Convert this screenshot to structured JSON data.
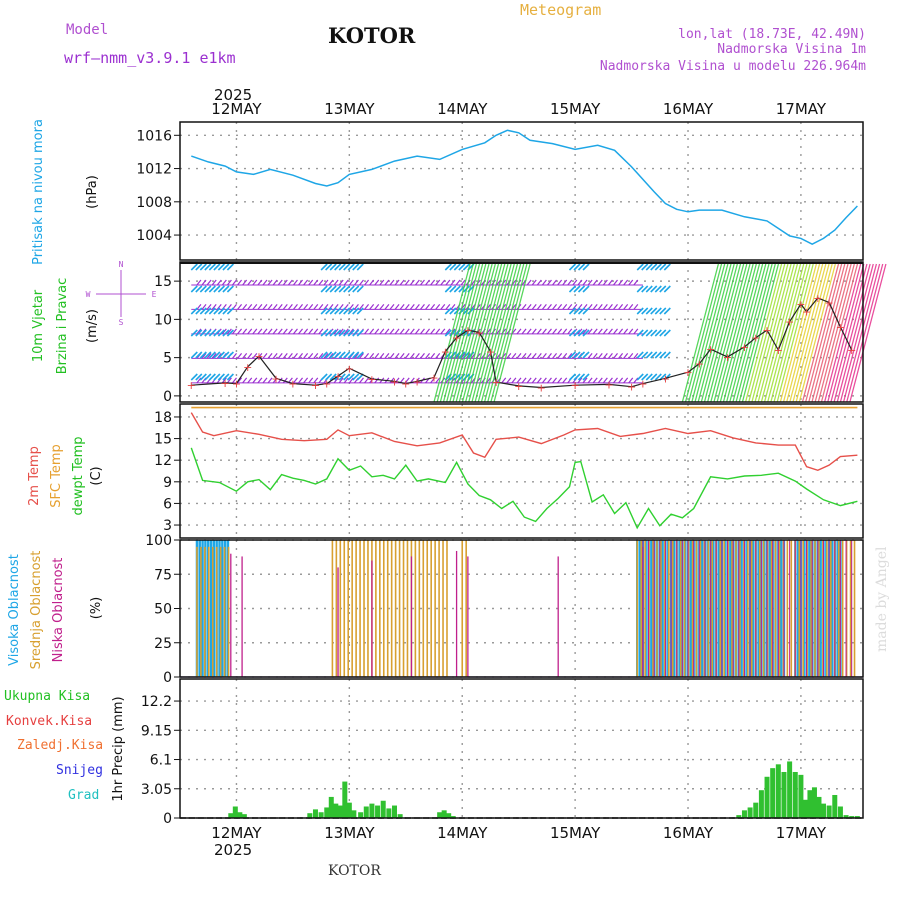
{
  "header": {
    "model_label": "Model",
    "model_name": "wrf–nmm_v3.9.1  e1km",
    "title": "KOTOR",
    "meteogram": "Meteogram",
    "coords": "lon,lat (18.73E, 42.49N)",
    "elevation": "Nadmorska Visina 1m",
    "model_elevation": "Nadmorska Visina u modelu 226.964m",
    "year_top": "2025",
    "year_bottom": "2025",
    "footer": "KOTOR",
    "watermark": "made by Angel"
  },
  "colors": {
    "pressure": "#1ea6e6",
    "wind_label": "#22c022",
    "temp2m": "#e6504a",
    "sfc": "#e6a030",
    "dew": "#30d030",
    "high_cloud": "#1ea6e6",
    "mid_cloud": "#d8a030",
    "low_cloud": "#c0208c",
    "precip": "#30c030",
    "wind_violet": "#9b30d0",
    "label_violet": "#b050d0",
    "label_orange": "#e6b040"
  },
  "chart_data": [
    {
      "type": "line",
      "panel": "pressure",
      "ylabel": "Pritisak na nivou mora",
      "unit": "(hPa)",
      "yticks": [
        "1016",
        "1012",
        "1008",
        "1004"
      ],
      "ylim": [
        1001,
        1017.6
      ],
      "x_days": [
        "12MAY",
        "13MAY",
        "14MAY",
        "15MAY",
        "16MAY",
        "17MAY"
      ],
      "series": [
        {
          "x": [
            11.6,
            11.75,
            11.9,
            12.0,
            12.15,
            12.3,
            12.5,
            12.7,
            12.8,
            12.9,
            13.0,
            13.2,
            13.4,
            13.6,
            13.8,
            14.0,
            14.2,
            14.3,
            14.4,
            14.5,
            14.6,
            14.8,
            15.0,
            15.2,
            15.35,
            15.5,
            15.7,
            15.8,
            15.9,
            16.0,
            16.1,
            16.3,
            16.5,
            16.7,
            16.8,
            16.9,
            17.0,
            17.1,
            17.2,
            17.3,
            17.4,
            17.5
          ],
          "values": [
            1013.5,
            1012.8,
            1012.3,
            1011.6,
            1011.3,
            1011.9,
            1011.2,
            1010.2,
            1009.9,
            1010.3,
            1011.3,
            1011.9,
            1012.9,
            1013.5,
            1013.1,
            1014.3,
            1015.1,
            1016.0,
            1016.6,
            1016.3,
            1015.4,
            1015.0,
            1014.3,
            1014.8,
            1014.2,
            1012.2,
            1009.2,
            1007.8,
            1007.1,
            1006.8,
            1007.0,
            1007.0,
            1006.2,
            1005.7,
            1004.8,
            1003.9,
            1003.6,
            1002.9,
            1003.6,
            1004.6,
            1006.1,
            1007.5
          ]
        }
      ]
    },
    {
      "type": "line",
      "panel": "wind",
      "ylabel_1": "10m Vjetar",
      "ylabel_2": "Brzina i Pravac",
      "unit": "(m/s)",
      "compass": [
        "N",
        "W",
        "E",
        "S"
      ],
      "yticks": [
        "15",
        "10",
        "5",
        "0"
      ],
      "ylim": [
        -0.8,
        17.5
      ],
      "series": [
        {
          "name": "speed",
          "x": [
            11.6,
            11.9,
            12.0,
            12.1,
            12.2,
            12.35,
            12.5,
            12.7,
            12.8,
            12.9,
            13.0,
            13.2,
            13.4,
            13.5,
            13.6,
            13.75,
            13.85,
            13.95,
            14.05,
            14.15,
            14.25,
            14.3,
            14.5,
            14.7,
            15.0,
            15.3,
            15.5,
            15.6,
            15.8,
            16.0,
            16.1,
            16.2,
            16.35,
            16.5,
            16.6,
            16.7,
            16.8,
            16.9,
            17.0,
            17.05,
            17.15,
            17.25,
            17.35,
            17.45
          ],
          "values": [
            1.4,
            1.7,
            1.6,
            3.8,
            5.2,
            2.3,
            1.6,
            1.4,
            1.6,
            2.6,
            3.6,
            2.2,
            1.9,
            1.6,
            1.9,
            2.4,
            5.8,
            7.6,
            8.6,
            8.3,
            5.8,
            1.8,
            1.3,
            1.1,
            1.4,
            1.5,
            1.2,
            1.6,
            2.3,
            3.1,
            4.2,
            6.1,
            5.1,
            6.4,
            7.6,
            8.6,
            6.0,
            9.7,
            12.0,
            11.0,
            12.8,
            12.2,
            9.0,
            6.0
          ]
        }
      ]
    },
    {
      "type": "line",
      "panel": "temperature",
      "ylabel_1": "2m Temp",
      "ylabel_2": "SFC Temp",
      "ylabel_3": "dewpt Temp",
      "unit": "(C)",
      "yticks": [
        "18",
        "15",
        "12",
        "9",
        "6",
        "3"
      ],
      "ylim": [
        1.2,
        19.8
      ],
      "series": [
        {
          "name": "2m Temp",
          "x": [
            11.6,
            11.7,
            11.8,
            12.0,
            12.2,
            12.4,
            12.6,
            12.8,
            12.9,
            13.0,
            13.2,
            13.4,
            13.6,
            13.8,
            14.0,
            14.1,
            14.2,
            14.3,
            14.5,
            14.7,
            14.9,
            15.0,
            15.2,
            15.4,
            15.6,
            15.8,
            16.0,
            16.2,
            16.4,
            16.6,
            16.8,
            16.95,
            17.05,
            17.15,
            17.25,
            17.35,
            17.5
          ],
          "values": [
            18.6,
            15.9,
            15.4,
            16.1,
            15.6,
            14.9,
            14.7,
            14.9,
            16.2,
            15.4,
            15.8,
            14.6,
            14.0,
            14.4,
            15.5,
            13.0,
            12.4,
            14.9,
            15.2,
            14.3,
            15.5,
            16.2,
            16.4,
            15.3,
            15.7,
            16.4,
            15.7,
            16.1,
            15.1,
            14.4,
            14.1,
            14.1,
            11.1,
            10.6,
            11.3,
            12.5,
            12.7
          ]
        },
        {
          "name": "dewpt Temp",
          "x": [
            11.6,
            11.7,
            11.85,
            12.0,
            12.1,
            12.2,
            12.3,
            12.4,
            12.5,
            12.6,
            12.7,
            12.8,
            12.9,
            13.0,
            13.1,
            13.2,
            13.3,
            13.4,
            13.5,
            13.6,
            13.7,
            13.85,
            13.95,
            14.05,
            14.15,
            14.25,
            14.35,
            14.45,
            14.55,
            14.65,
            14.75,
            14.85,
            14.95,
            15.0,
            15.05,
            15.15,
            15.25,
            15.35,
            15.45,
            15.55,
            15.65,
            15.75,
            15.85,
            15.95,
            16.05,
            16.2,
            16.35,
            16.5,
            16.65,
            16.8,
            16.95,
            17.05,
            17.2,
            17.35,
            17.5
          ],
          "values": [
            13.7,
            9.2,
            8.9,
            7.7,
            9.0,
            9.3,
            7.9,
            10.0,
            9.5,
            9.2,
            8.7,
            9.4,
            12.2,
            10.6,
            11.2,
            9.7,
            9.9,
            9.4,
            11.3,
            9.1,
            9.4,
            8.9,
            11.7,
            8.7,
            7.1,
            6.5,
            5.3,
            6.3,
            4.1,
            3.5,
            5.3,
            6.7,
            8.3,
            11.7,
            11.8,
            6.2,
            7.2,
            4.6,
            6.1,
            2.6,
            5.3,
            2.9,
            4.5,
            4.0,
            5.3,
            9.7,
            9.4,
            9.8,
            9.9,
            10.2,
            9.1,
            8.0,
            6.5,
            5.7,
            6.3
          ]
        },
        {
          "name": "SFC Temp",
          "x": [
            11.6,
            17.5
          ],
          "values": [
            19.3,
            19.3
          ]
        }
      ]
    },
    {
      "type": "bar",
      "panel": "clouds",
      "ylabel_1": "Visoka Oblacnost",
      "ylabel_2": "Srednja Oblacnost",
      "ylabel_3": "Niska Oblacnost",
      "unit": "(%)",
      "yticks": [
        "100",
        "75",
        "50",
        "25",
        "0"
      ],
      "ylim": [
        0,
        100
      ],
      "series": [
        {
          "name": "Visoka Oblacnost",
          "segments": [
            [
              11.65,
              11.95,
              100
            ],
            [
              15.55,
              16.85,
              100
            ],
            [
              16.95,
              17.35,
              100
            ]
          ]
        },
        {
          "name": "Srednja Oblacnost",
          "segments": [
            [
              11.65,
              11.95,
              95
            ],
            [
              12.85,
              13.9,
              100
            ],
            [
              14.0,
              14.05,
              100
            ],
            [
              15.55,
              17.5,
              100
            ]
          ]
        },
        {
          "name": "Niska Oblacnost",
          "spikes": [
            [
              11.95,
              90
            ],
            [
              12.05,
              88
            ],
            [
              12.9,
              80
            ],
            [
              13.2,
              85
            ],
            [
              13.55,
              88
            ],
            [
              13.95,
              92
            ],
            [
              14.05,
              88
            ],
            [
              14.85,
              88
            ],
            [
              15.6,
              95
            ]
          ]
        }
      ]
    },
    {
      "type": "bar",
      "panel": "precip",
      "ylabel": "1hr Precip (mm)",
      "legend": [
        "Ukupna Kisa",
        "Konvek.Kisa",
        "Zaledj.Kisa",
        "Snijeg",
        "Grad"
      ],
      "yticks": [
        "12.2",
        "9.15",
        "6.1",
        "3.05",
        "0"
      ],
      "ylim": [
        0,
        14.5
      ],
      "x": [
        11.95,
        11.99,
        12.03,
        12.07,
        12.65,
        12.7,
        12.75,
        12.8,
        12.84,
        12.88,
        12.92,
        12.96,
        13.0,
        13.04,
        13.1,
        13.15,
        13.2,
        13.25,
        13.3,
        13.35,
        13.4,
        13.45,
        13.8,
        13.84,
        13.88,
        13.92,
        16.45,
        16.5,
        16.55,
        16.6,
        16.65,
        16.7,
        16.75,
        16.8,
        16.85,
        16.9,
        16.95,
        17.0,
        17.04,
        17.08,
        17.12,
        17.16,
        17.2,
        17.25,
        17.3,
        17.35,
        17.4,
        17.45,
        17.5
      ],
      "values": [
        0.5,
        1.2,
        0.6,
        0.4,
        0.5,
        0.9,
        0.6,
        1.1,
        2.2,
        1.5,
        1.3,
        3.8,
        1.6,
        0.8,
        0.6,
        1.2,
        1.5,
        1.3,
        1.8,
        1.0,
        1.3,
        0.4,
        0.6,
        0.8,
        0.5,
        0.2,
        0.3,
        0.8,
        1.1,
        1.6,
        2.9,
        4.3,
        5.2,
        5.6,
        4.8,
        5.9,
        4.8,
        4.5,
        1.9,
        2.9,
        3.2,
        2.2,
        1.5,
        1.3,
        2.4,
        1.2,
        0.3,
        0.2,
        0.2
      ]
    }
  ]
}
